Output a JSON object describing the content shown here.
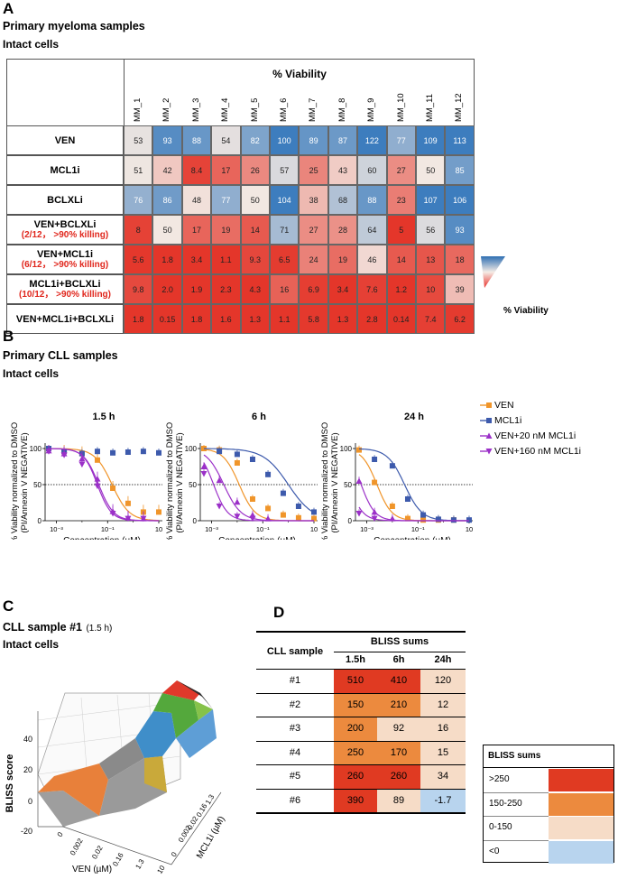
{
  "panels": {
    "A": {
      "letter": "A",
      "title": "Primary myeloma samples",
      "subtitle": "Intact cells",
      "header": "% Viability",
      "columns": [
        "MM_1",
        "MM_2",
        "MM_3",
        "MM_4",
        "MM_5",
        "MM_6",
        "MM_7",
        "MM_8",
        "MM_9",
        "MM_10",
        "MM_11",
        "MM_12"
      ],
      "rows": [
        {
          "label": "VEN",
          "sub": "",
          "values": [
            "53",
            "93",
            "88",
            "54",
            "82",
            "100",
            "89",
            "87",
            "122",
            "77",
            "109",
            "113"
          ]
        },
        {
          "label": "MCL1i",
          "sub": "",
          "values": [
            "51",
            "42",
            "8.4",
            "17",
            "26",
            "57",
            "25",
            "43",
            "60",
            "27",
            "50",
            "85"
          ]
        },
        {
          "label": "BCLXLi",
          "sub": "",
          "values": [
            "76",
            "86",
            "48",
            "77",
            "50",
            "104",
            "38",
            "68",
            "88",
            "23",
            "107",
            "106"
          ]
        },
        {
          "label": "VEN+BCLXLi",
          "sub": "(2/12， >90% killing)",
          "values": [
            "8",
            "50",
            "17",
            "19",
            "14",
            "71",
            "27",
            "28",
            "64",
            "5",
            "56",
            "93"
          ]
        },
        {
          "label": "VEN+MCL1i",
          "sub": "(6/12， >90% killing)",
          "values": [
            "5.6",
            "1.8",
            "3.4",
            "1.1",
            "9.3",
            "6.5",
            "24",
            "19",
            "46",
            "14",
            "13",
            "18"
          ]
        },
        {
          "label": "MCL1i+BCLXLi",
          "sub": "(10/12， >90% killing)",
          "values": [
            "9.8",
            "2.0",
            "1.9",
            "2.3",
            "4.3",
            "16",
            "6.9",
            "3.4",
            "7.6",
            "1.2",
            "10",
            "39"
          ]
        },
        {
          "label": "VEN+MCL1i+BCLXLi",
          "sub": "",
          "values": [
            "1.8",
            "0.15",
            "1.8",
            "1.6",
            "1.3",
            "1.1",
            "5.8",
            "1.3",
            "2.8",
            "0.14",
            "7.4",
            "6.2"
          ]
        }
      ],
      "legend_label": "% Viability"
    },
    "B": {
      "letter": "B",
      "title": "Primary CLL samples",
      "subtitle": "Intact cells",
      "ylabel_line1": "% Viability normalized to DMSO",
      "ylabel_line2": "(PI/Annexin V NEGATIVE)",
      "xlabel": "Concentration (µM)",
      "legend": [
        {
          "name": "VEN",
          "color": "#f0952a",
          "marker": "square"
        },
        {
          "name": "MCL1i",
          "color": "#3d5aac",
          "marker": "square"
        },
        {
          "name": "VEN+20 nM MCL1i",
          "color": "#9b30c8",
          "marker": "triangle-up"
        },
        {
          "name": "VEN+160 nM MCL1i",
          "color": "#9b30c8",
          "marker": "triangle-down"
        }
      ]
    },
    "C": {
      "letter": "C",
      "title": "CLL sample #1",
      "title_note": "(1.5 h)",
      "subtitle": "Intact cells",
      "zlabel": "BLISS score",
      "zticks": [
        "-20",
        "0",
        "20",
        "40"
      ],
      "xticks": [
        "0",
        "0.002",
        "0.02",
        "0.16",
        "1.3",
        "10"
      ],
      "yticks": [
        "1.3",
        "0.16",
        "0.02",
        "0.002",
        "0"
      ],
      "xlabel": "VEN (µM)",
      "ylabel": "MCL1i (µM)"
    },
    "D": {
      "letter": "D",
      "col_header_sample": "CLL sample",
      "group_header": "BLISS sums",
      "timepoints": [
        "1.5h",
        "6h",
        "24h"
      ],
      "rows": [
        {
          "sample": "#1",
          "values": [
            "510",
            "410",
            "120"
          ]
        },
        {
          "sample": "#2",
          "values": [
            "150",
            "210",
            "12"
          ]
        },
        {
          "sample": "#3",
          "values": [
            "200",
            "92",
            "16"
          ]
        },
        {
          "sample": "#4",
          "values": [
            "250",
            "170",
            "15"
          ]
        },
        {
          "sample": "#5",
          "values": [
            "260",
            "260",
            "34"
          ]
        },
        {
          "sample": "#6",
          "values": [
            "390",
            "89",
            "-1.7"
          ]
        }
      ],
      "legend_title": "BLISS sums",
      "legend": [
        {
          "label": ">250",
          "color": "#e03a22"
        },
        {
          "label": "150-250",
          "color": "#ec8a3e"
        },
        {
          "label": "0-150",
          "color": "#f6dcc7"
        },
        {
          "label": "<0",
          "color": "#b8d4ee"
        }
      ]
    }
  },
  "chart_data": [
    {
      "type": "line",
      "title": "1.5 h",
      "xscale": "log",
      "xlim": [
        0.0005,
        10
      ],
      "ylim": [
        0,
        100
      ],
      "reference_line": 50,
      "xticks": [
        "10⁻³",
        "10⁻¹",
        "10"
      ],
      "yticks": [
        "0",
        "50",
        "100"
      ],
      "xlabel": "Concentration (µM)",
      "ylabel": "% Viability normalized to DMSO (PI/Annexin V NEGATIVE)",
      "series": [
        {
          "name": "VEN",
          "x": [
            0.0005,
            0.002,
            0.01,
            0.04,
            0.16,
            0.63,
            2.5,
            10
          ],
          "y": [
            100,
            96,
            93,
            84,
            45,
            24,
            12,
            12
          ],
          "fit_ic50": 0.15,
          "fit_hill": 1.3
        },
        {
          "name": "MCL1i",
          "x": [
            0.0005,
            0.002,
            0.01,
            0.04,
            0.16,
            0.63,
            2.5,
            10
          ],
          "y": [
            100,
            96,
            93,
            96,
            94,
            95,
            96,
            94
          ],
          "fit_ic50": null,
          "fit_hill": null
        },
        {
          "name": "VEN+20 nM MCL1i",
          "x": [
            0.0005,
            0.002,
            0.01,
            0.04,
            0.16,
            0.63,
            2.5
          ],
          "y": [
            97,
            93,
            86,
            58,
            13,
            4,
            3
          ],
          "fit_ic50": 0.045,
          "fit_hill": 1.5
        },
        {
          "name": "VEN+160 nM MCL1i",
          "x": [
            0.0005,
            0.002,
            0.01,
            0.04,
            0.16,
            0.63,
            2.5
          ],
          "y": [
            96,
            91,
            78,
            48,
            10,
            3,
            3
          ],
          "fit_ic50": 0.04,
          "fit_hill": 1.6
        }
      ]
    },
    {
      "type": "line",
      "title": "6 h",
      "xscale": "log",
      "xlim": [
        0.0005,
        10
      ],
      "ylim": [
        0,
        100
      ],
      "reference_line": 50,
      "xticks": [
        "10⁻³",
        "10⁻¹",
        "10"
      ],
      "yticks": [
        "0",
        "50",
        "100"
      ],
      "xlabel": "Concentration (µM)",
      "ylabel": "% Viability normalized to DMSO (PI/Annexin V NEGATIVE)",
      "series": [
        {
          "name": "VEN",
          "x": [
            0.0005,
            0.002,
            0.01,
            0.04,
            0.16,
            0.63,
            2.5,
            10
          ],
          "y": [
            100,
            98,
            80,
            30,
            17,
            8,
            4,
            3
          ],
          "fit_ic50": 0.012,
          "fit_hill": 1.4
        },
        {
          "name": "MCL1i",
          "x": [
            0.002,
            0.01,
            0.04,
            0.16,
            0.63,
            2.5,
            10
          ],
          "y": [
            96,
            92,
            85,
            64,
            38,
            20,
            12
          ],
          "fit_ic50": 1.0,
          "fit_hill": 0.9
        },
        {
          "name": "VEN+20 nM MCL1i",
          "x": [
            0.0005,
            0.002,
            0.01,
            0.04,
            0.16
          ],
          "y": [
            75,
            56,
            26,
            8,
            3
          ],
          "fit_ic50": 0.003,
          "fit_hill": 1.3
        },
        {
          "name": "VEN+160 nM MCL1i",
          "x": [
            0.0005,
            0.002,
            0.01,
            0.04
          ],
          "y": [
            65,
            20,
            6,
            3
          ],
          "fit_ic50": 0.0012,
          "fit_hill": 1.6
        }
      ]
    },
    {
      "type": "line",
      "title": "24 h",
      "xscale": "log",
      "xlim": [
        0.0005,
        10
      ],
      "ylim": [
        0,
        100
      ],
      "reference_line": 50,
      "xticks": [
        "10⁻³",
        "10⁻¹",
        "10"
      ],
      "yticks": [
        "0",
        "50",
        "100"
      ],
      "xlabel": "Concentration (µM)",
      "ylabel": "% Viability normalized to DMSO (PI/Annexin V NEGATIVE)",
      "series": [
        {
          "name": "VEN",
          "x": [
            0.0005,
            0.002,
            0.01,
            0.04,
            0.16,
            0.63,
            2.5
          ],
          "y": [
            98,
            53,
            20,
            3,
            1,
            1,
            1
          ],
          "fit_ic50": 0.0025,
          "fit_hill": 1.5
        },
        {
          "name": "MCL1i",
          "x": [
            0.002,
            0.01,
            0.04,
            0.16,
            0.63,
            2.5,
            10
          ],
          "y": [
            85,
            76,
            30,
            8,
            2,
            1,
            1
          ],
          "fit_ic50": 0.03,
          "fit_hill": 1.3
        },
        {
          "name": "VEN+20 nM MCL1i",
          "x": [
            0.0005,
            0.002,
            0.01
          ],
          "y": [
            55,
            12,
            3
          ],
          "fit_ic50": 0.0006,
          "fit_hill": 1.6
        },
        {
          "name": "VEN+160 nM MCL1i",
          "x": [
            0.0005,
            0.002
          ],
          "y": [
            10,
            3
          ],
          "fit_ic50": 0.0002,
          "fit_hill": 1.6
        }
      ]
    }
  ]
}
